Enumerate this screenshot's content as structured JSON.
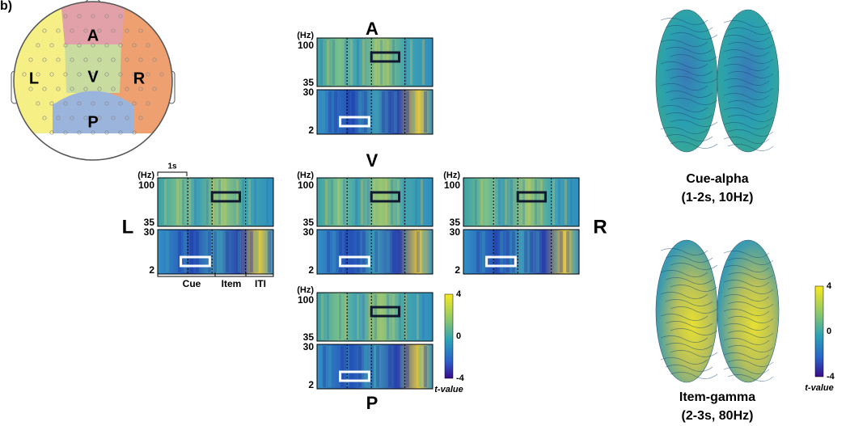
{
  "figure_label": "b)",
  "head_map": {
    "regions": [
      "A",
      "V",
      "L",
      "R",
      "P"
    ]
  },
  "time_frequency": {
    "freq_unit": "(Hz)",
    "freq_ticks": [
      "100",
      "35",
      "30",
      "2"
    ],
    "time_scale": "1s",
    "epochs": [
      "Cue",
      "Item",
      "ITI"
    ],
    "panels": [
      "A",
      "V",
      "L",
      "R",
      "P"
    ],
    "colorbar": {
      "ticks": [
        "4",
        "0",
        "-4"
      ],
      "label": "t-value"
    }
  },
  "brain_maps": {
    "captions": [
      {
        "name": "Cue-alpha",
        "window": "(1-2s, 10Hz)"
      },
      {
        "name": "Item-gamma",
        "window": "(2-3s, 80Hz)"
      }
    ],
    "colorbar": {
      "ticks": [
        "4",
        "0",
        "-4"
      ],
      "label": "t-value"
    }
  }
}
